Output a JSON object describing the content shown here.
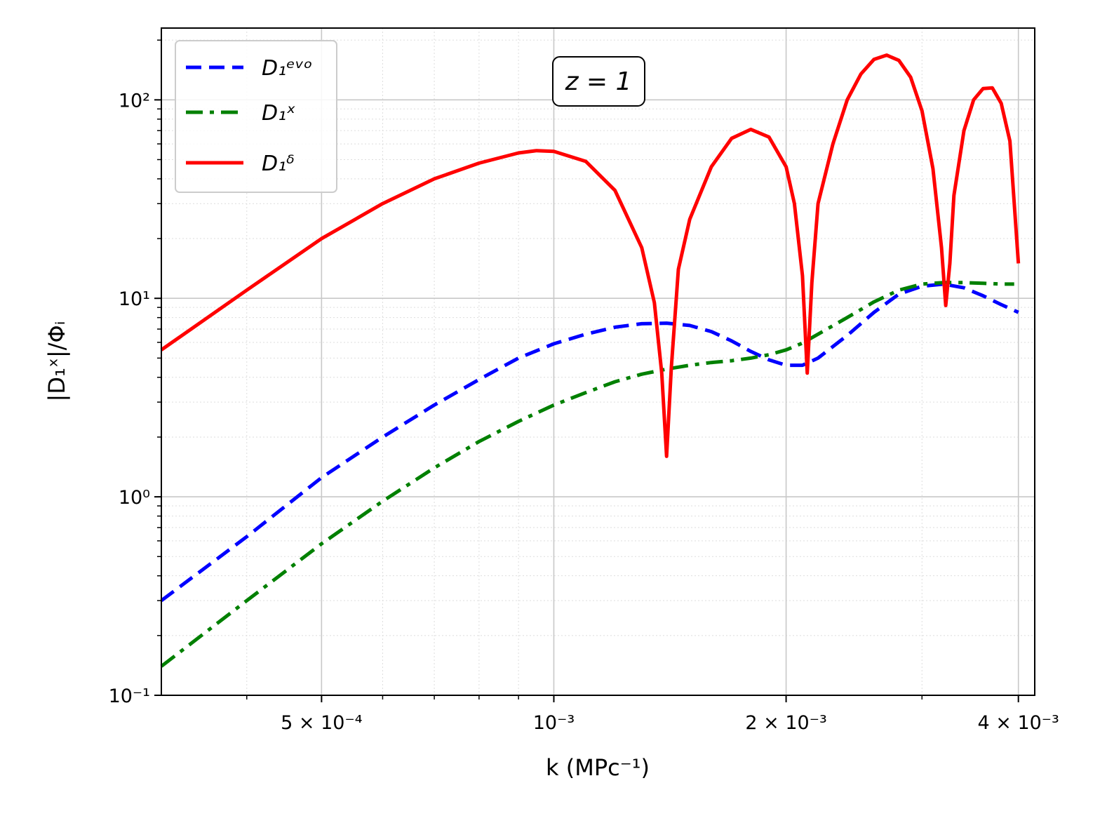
{
  "chart_data": {
    "type": "line",
    "scale": {
      "x": "log",
      "y": "log"
    },
    "xlim": [
      0.00031,
      0.0042
    ],
    "ylim": [
      0.1,
      230
    ],
    "grid": {
      "major": true,
      "minor": true
    },
    "legend_position": "top-left",
    "xlabel": "k (MPc⁻¹)",
    "ylabel": "|D₁ˣ|/Φᵢ",
    "annotation": "z = 1",
    "x_ticks": [
      {
        "value": 0.0005,
        "label": "5 × 10⁻⁴"
      },
      {
        "value": 0.001,
        "label": "10⁻³"
      },
      {
        "value": 0.002,
        "label": "2 × 10⁻³"
      },
      {
        "value": 0.004,
        "label": "4 × 10⁻³"
      }
    ],
    "y_ticks": [
      {
        "value": 0.1,
        "label": "10⁻¹"
      },
      {
        "value": 1,
        "label": "10⁰"
      },
      {
        "value": 10,
        "label": "10¹"
      },
      {
        "value": 100,
        "label": "10²"
      }
    ],
    "series": [
      {
        "name": "D₁ᵉᵛᵒ",
        "color": "#0000ff",
        "style": "dashed",
        "points": [
          [
            0.00031,
            0.3
          ],
          [
            0.0004,
            0.63
          ],
          [
            0.0005,
            1.25
          ],
          [
            0.0006,
            2.0
          ],
          [
            0.0007,
            2.9
          ],
          [
            0.0008,
            3.9
          ],
          [
            0.0009,
            5.0
          ],
          [
            0.001,
            5.9
          ],
          [
            0.0011,
            6.6
          ],
          [
            0.0012,
            7.15
          ],
          [
            0.0013,
            7.45
          ],
          [
            0.0014,
            7.5
          ],
          [
            0.0015,
            7.3
          ],
          [
            0.0016,
            6.8
          ],
          [
            0.0017,
            6.1
          ],
          [
            0.0018,
            5.4
          ],
          [
            0.0019,
            4.9
          ],
          [
            0.002,
            4.6
          ],
          [
            0.0021,
            4.6
          ],
          [
            0.0022,
            5.0
          ],
          [
            0.0024,
            6.5
          ],
          [
            0.0026,
            8.5
          ],
          [
            0.0028,
            10.5
          ],
          [
            0.003,
            11.5
          ],
          [
            0.0032,
            11.8
          ],
          [
            0.0034,
            11.3
          ],
          [
            0.0036,
            10.3
          ],
          [
            0.0038,
            9.3
          ],
          [
            0.004,
            8.5
          ]
        ]
      },
      {
        "name": "D₁ˣ",
        "color": "#008000",
        "style": "dashdot",
        "points": [
          [
            0.00031,
            0.14
          ],
          [
            0.0004,
            0.3
          ],
          [
            0.0005,
            0.58
          ],
          [
            0.0006,
            0.95
          ],
          [
            0.0007,
            1.4
          ],
          [
            0.0008,
            1.9
          ],
          [
            0.0009,
            2.4
          ],
          [
            0.001,
            2.9
          ],
          [
            0.0011,
            3.35
          ],
          [
            0.0012,
            3.8
          ],
          [
            0.0013,
            4.15
          ],
          [
            0.0014,
            4.4
          ],
          [
            0.0015,
            4.6
          ],
          [
            0.0016,
            4.75
          ],
          [
            0.0017,
            4.85
          ],
          [
            0.0018,
            5.0
          ],
          [
            0.0019,
            5.2
          ],
          [
            0.002,
            5.5
          ],
          [
            0.0021,
            5.95
          ],
          [
            0.0022,
            6.6
          ],
          [
            0.0024,
            8.0
          ],
          [
            0.0026,
            9.6
          ],
          [
            0.0028,
            11.0
          ],
          [
            0.003,
            11.8
          ],
          [
            0.0032,
            12.0
          ],
          [
            0.0034,
            12.0
          ],
          [
            0.0036,
            11.9
          ],
          [
            0.0038,
            11.8
          ],
          [
            0.00395,
            11.8
          ]
        ]
      },
      {
        "name": "D₁ᵟ",
        "color": "#ff0000",
        "style": "solid",
        "points": [
          [
            0.00031,
            5.5
          ],
          [
            0.0004,
            11
          ],
          [
            0.0005,
            20
          ],
          [
            0.0006,
            30
          ],
          [
            0.0007,
            40
          ],
          [
            0.0008,
            48
          ],
          [
            0.0009,
            54
          ],
          [
            0.00095,
            55.5
          ],
          [
            0.001,
            55
          ],
          [
            0.0011,
            49
          ],
          [
            0.0012,
            35
          ],
          [
            0.0013,
            18
          ],
          [
            0.00135,
            9.5
          ],
          [
            0.00138,
            4.2
          ],
          [
            0.0014,
            1.6
          ],
          [
            0.00142,
            4.5
          ],
          [
            0.00145,
            14
          ],
          [
            0.0015,
            25
          ],
          [
            0.0016,
            46
          ],
          [
            0.0017,
            64
          ],
          [
            0.0018,
            71
          ],
          [
            0.0019,
            65
          ],
          [
            0.002,
            46
          ],
          [
            0.00205,
            30
          ],
          [
            0.0021,
            13
          ],
          [
            0.00213,
            4.2
          ],
          [
            0.00216,
            12
          ],
          [
            0.0022,
            30
          ],
          [
            0.0023,
            60
          ],
          [
            0.0024,
            100
          ],
          [
            0.0025,
            135
          ],
          [
            0.0026,
            160
          ],
          [
            0.0027,
            168
          ],
          [
            0.0028,
            158
          ],
          [
            0.0029,
            130
          ],
          [
            0.003,
            88
          ],
          [
            0.0031,
            45
          ],
          [
            0.00318,
            18
          ],
          [
            0.00322,
            9.2
          ],
          [
            0.00326,
            15
          ],
          [
            0.0033,
            33
          ],
          [
            0.0034,
            70
          ],
          [
            0.0035,
            100
          ],
          [
            0.0036,
            114
          ],
          [
            0.0037,
            115
          ],
          [
            0.0038,
            96
          ],
          [
            0.0039,
            62
          ],
          [
            0.004,
            15
          ]
        ]
      }
    ]
  }
}
